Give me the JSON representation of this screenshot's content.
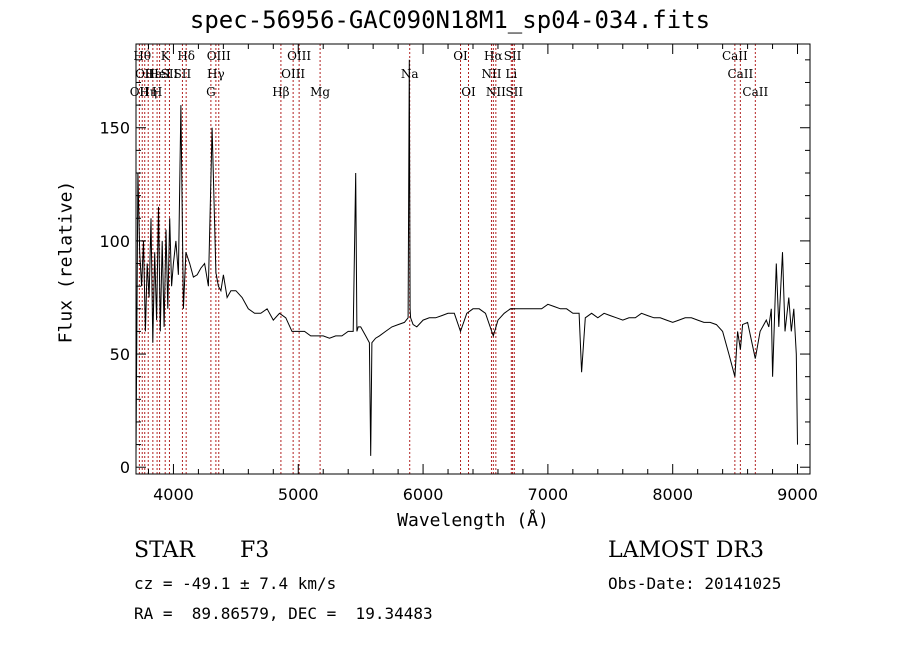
{
  "chart_data": {
    "type": "line",
    "title": "spec-56956-GAC090N18M1_sp04-034.fits",
    "xlabel": "Wavelength (Å)",
    "ylabel": "Flux (relative)",
    "xlim": [
      3700,
      9100
    ],
    "ylim": [
      -3,
      187
    ],
    "xticks": [
      4000,
      5000,
      6000,
      7000,
      8000,
      9000
    ],
    "yticks": [
      0,
      50,
      100,
      150
    ],
    "series": [
      {
        "name": "spectrum",
        "x": [
          3700,
          3715,
          3730,
          3745,
          3760,
          3775,
          3790,
          3805,
          3820,
          3835,
          3850,
          3865,
          3880,
          3895,
          3910,
          3925,
          3940,
          3955,
          3970,
          3985,
          4000,
          4020,
          4040,
          4060,
          4080,
          4100,
          4130,
          4160,
          4190,
          4220,
          4250,
          4280,
          4310,
          4340,
          4360,
          4380,
          4400,
          4430,
          4460,
          4500,
          4550,
          4600,
          4650,
          4700,
          4750,
          4800,
          4850,
          4900,
          4950,
          5000,
          5050,
          5100,
          5150,
          5200,
          5250,
          5300,
          5350,
          5400,
          5440,
          5460,
          5470,
          5480,
          5500,
          5540,
          5570,
          5580,
          5590,
          5620,
          5650,
          5700,
          5750,
          5800,
          5850,
          5880,
          5890,
          5896,
          5900,
          5920,
          5950,
          6000,
          6050,
          6100,
          6150,
          6200,
          6250,
          6300,
          6350,
          6400,
          6450,
          6500,
          6550,
          6563,
          6600,
          6650,
          6700,
          6750,
          6800,
          6850,
          6900,
          6950,
          7000,
          7050,
          7100,
          7150,
          7200,
          7250,
          7270,
          7300,
          7350,
          7400,
          7450,
          7500,
          7550,
          7600,
          7650,
          7700,
          7750,
          7800,
          7850,
          7900,
          7950,
          8000,
          8050,
          8100,
          8150,
          8200,
          8250,
          8300,
          8350,
          8400,
          8450,
          8498,
          8520,
          8542,
          8560,
          8600,
          8662,
          8700,
          8750,
          8770,
          8790,
          8800,
          8830,
          8850,
          8880,
          8900,
          8930,
          8950,
          8970,
          8990,
          9000
        ],
        "y": [
          5,
          130,
          95,
          80,
          100,
          60,
          90,
          75,
          110,
          55,
          95,
          65,
          115,
          60,
          100,
          62,
          105,
          70,
          110,
          80,
          90,
          100,
          85,
          160,
          70,
          95,
          90,
          84,
          85,
          88,
          90,
          80,
          150,
          86,
          80,
          78,
          85,
          75,
          78,
          78,
          75,
          70,
          68,
          68,
          70,
          65,
          68,
          66,
          60,
          60,
          60,
          58,
          58,
          58,
          57,
          58,
          58,
          60,
          60,
          130,
          60,
          62,
          62,
          58,
          55,
          5,
          55,
          57,
          58,
          60,
          62,
          63,
          64,
          66,
          180,
          70,
          66,
          63,
          62,
          65,
          66,
          66,
          67,
          68,
          68,
          60,
          68,
          70,
          70,
          68,
          60,
          58,
          65,
          68,
          70,
          70,
          70,
          70,
          70,
          70,
          72,
          71,
          70,
          70,
          68,
          68,
          42,
          66,
          68,
          66,
          68,
          67,
          66,
          65,
          66,
          66,
          68,
          67,
          66,
          66,
          65,
          64,
          65,
          66,
          66,
          65,
          64,
          64,
          63,
          60,
          50,
          40,
          60,
          52,
          63,
          64,
          48,
          60,
          65,
          62,
          70,
          40,
          90,
          62,
          95,
          60,
          75,
          60,
          70,
          50,
          10
        ]
      }
    ],
    "lines": [
      {
        "wave": 3727,
        "row": 2,
        "label": "OII"
      },
      {
        "wave": 3750,
        "row": 0,
        "label": "Hθ"
      },
      {
        "wave": 3770,
        "row": 1,
        "label": "OII"
      },
      {
        "wave": 3798,
        "row": 2,
        "label": "Hη"
      },
      {
        "wave": 3835,
        "row": 1,
        "label": "Hε"
      },
      {
        "wave": 3869,
        "row": 2,
        "label": "H"
      },
      {
        "wave": 3889,
        "row": 1,
        "label": "HeI"
      },
      {
        "wave": 3934,
        "row": 0,
        "label": "K"
      },
      {
        "wave": 3968,
        "row": 1,
        "label": "SII"
      },
      {
        "wave": 4102,
        "row": 0,
        "label": "Hδ"
      },
      {
        "wave": 4072,
        "row": 1,
        "label": "SII"
      },
      {
        "wave": 4300,
        "row": 2,
        "label": "G"
      },
      {
        "wave": 4340,
        "row": 1,
        "label": "Hγ"
      },
      {
        "wave": 4363,
        "row": 0,
        "label": "OIII"
      },
      {
        "wave": 4861,
        "row": 2,
        "label": "Hβ"
      },
      {
        "wave": 4959,
        "row": 1,
        "label": "OIII"
      },
      {
        "wave": 5007,
        "row": 0,
        "label": "OIII"
      },
      {
        "wave": 5175,
        "row": 2,
        "label": "Mg"
      },
      {
        "wave": 5893,
        "row": 1,
        "label": "Na"
      },
      {
        "wave": 6300,
        "row": 0,
        "label": "OI"
      },
      {
        "wave": 6364,
        "row": 2,
        "label": "OI"
      },
      {
        "wave": 6548,
        "row": 1,
        "label": "NII"
      },
      {
        "wave": 6563,
        "row": 0,
        "label": "Hα"
      },
      {
        "wave": 6583,
        "row": 2,
        "label": "NII"
      },
      {
        "wave": 6707,
        "row": 1,
        "label": "Li"
      },
      {
        "wave": 6717,
        "row": 0,
        "label": "SII"
      },
      {
        "wave": 6731,
        "row": 2,
        "label": "SII"
      },
      {
        "wave": 8498,
        "row": 0,
        "label": "CaII"
      },
      {
        "wave": 8542,
        "row": 1,
        "label": "CaII"
      },
      {
        "wave": 8662,
        "row": 2,
        "label": "CaII"
      }
    ]
  },
  "info": {
    "object_class": "STAR",
    "subclass": "F3",
    "survey": "LAMOST DR3",
    "redshift": "cz = -49.1 ± 7.4 km/s",
    "obs_date": "Obs-Date: 20141025",
    "coords": "RA =  89.86579, DEC =  19.34483"
  }
}
